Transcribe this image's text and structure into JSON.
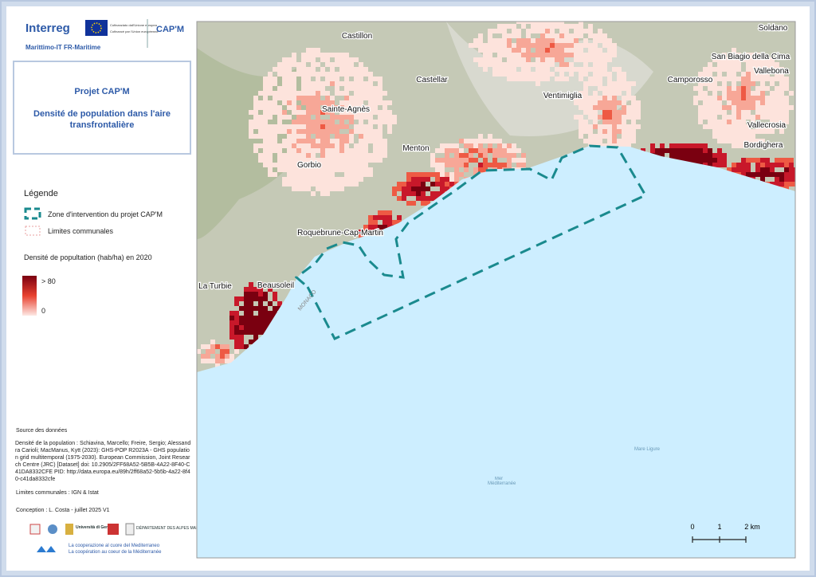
{
  "header": {
    "logo": "Interreg",
    "program": "Marittimo-IT FR-Maritime",
    "eu_it": "Cofinanziato dall'Unione europea",
    "eu_fr": "Cofinancé par l'Union européenne",
    "project_logo": "CAP'M"
  },
  "title_box": {
    "project": "Projet CAP'M",
    "title": "Densité de population dans l'aire transfrontalière"
  },
  "legend": {
    "title": "Légende",
    "zone": "Zone d'intervention du projet CAP'M",
    "limits": "Limites communales",
    "density_title": "Densité de popultation (hab/ha) en 2020",
    "max": "> 80",
    "min": "0"
  },
  "sources": {
    "heading": "Source des données",
    "density": "Densité de la population : Schiavina, Marcello; Freire, Sergio; Alessandra Carioli; MacManus, Kytt (2023): GHS-POP R2023A - GHS population grid multitemporal (1975-2030). European Commission, Joint Research Centre (JRC) [Dataset] doi: 10.2905/2FF68A52-5B5B-4A22-8F40-C41DA8332CFE PID: http://data.europa.eu/89h/2ff68a52-5b5b-4a22-8f40-c41da8332cfe",
    "limits": "Limites communales : IGN & Istat",
    "conception": "Conception : L. Costa - juillet 2025 V1"
  },
  "footer": {
    "unige": "Università di Genova",
    "departement": "DÉPARTEMENT DES ALPES MARITIMES",
    "slogan_it": "La cooperazione al cuore del Mediterraneo",
    "slogan_fr": "La coopération au coeur de la Méditerranée"
  },
  "map": {
    "places": [
      "Castillon",
      "Soldano",
      "San Biagio della Cima",
      "Vallebona",
      "Castellar",
      "Camporosso",
      "Ventimiglia",
      "Sainte-Agnès",
      "Vallecrosia",
      "Bordighera",
      "Menton",
      "Gorbio",
      "Roquebrune-Cap-Martin",
      "La Turbie",
      "Beausoleil"
    ],
    "monaco": "MONACO",
    "sea_it": "Mare Ligure",
    "sea_fr": "Mer Méditerranée",
    "scale": [
      "0",
      "1",
      "2 km"
    ]
  }
}
